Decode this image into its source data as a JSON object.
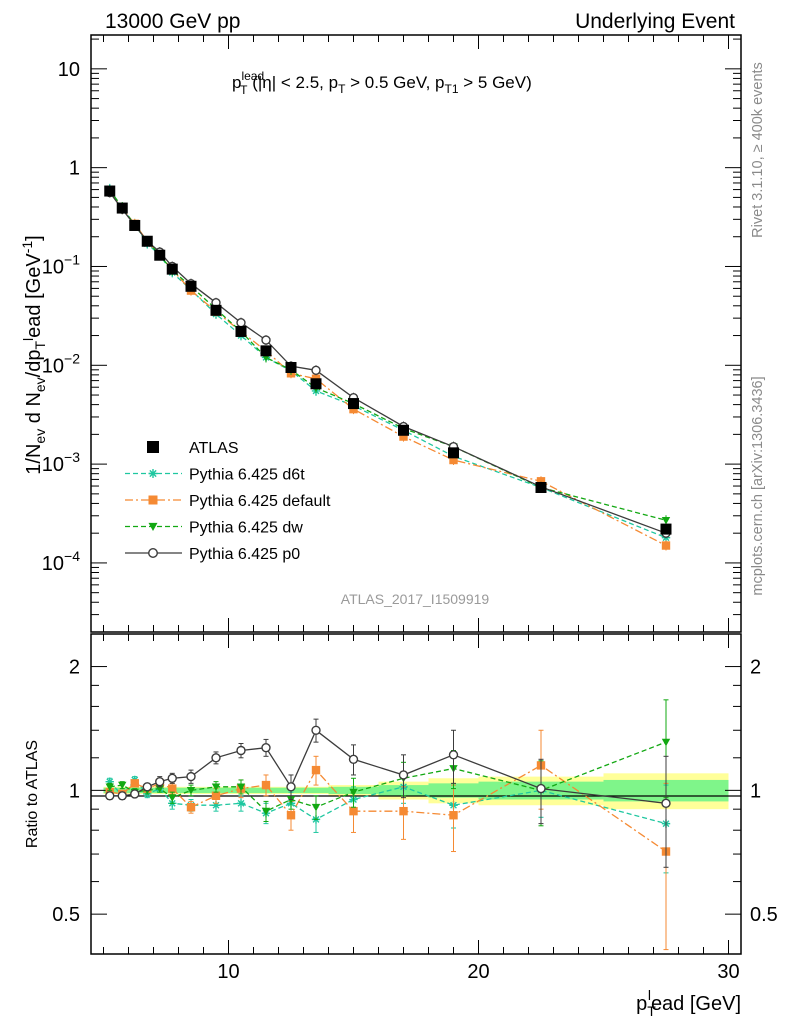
{
  "header": {
    "left": "13000 GeV pp",
    "right": "Underlying Event"
  },
  "side_labels": {
    "rivet": "Rivet 3.1.10, ≥ 400k events",
    "mcplots": "mcplots.cern.ch [arXiv:1306.3436]"
  },
  "watermark": "ATLAS_2017_I1509919",
  "colors": {
    "atlas": "#000000",
    "d6t": "#1fc7a0",
    "default": "#f58a33",
    "dw": "#12a812",
    "p0": "#3c3c3c",
    "band_inner": "#7ff58a",
    "band_outer": "#ffff99"
  },
  "chart_data": [
    {
      "type": "line",
      "panel": "main",
      "title": "p_T^lead (|η| < 2.5, p_T > 0.5 GeV, p_T1 > 5 GeV)",
      "ylabel": "1/N_ev d N_ev/dp_T^lead [GeV^-1]",
      "xlim": [
        4.5,
        30.5
      ],
      "ylim": [
        2e-05,
        22
      ],
      "yscale": "log",
      "y_tick_labels": [
        "10^-4",
        "10^-3",
        "10^-2",
        "10^-1",
        "1",
        "10"
      ],
      "legend_position": "lower-left",
      "x": [
        5.25,
        5.75,
        6.25,
        6.75,
        7.25,
        7.75,
        8.5,
        9.5,
        10.5,
        11.5,
        12.5,
        13.5,
        15.0,
        17.0,
        19.0,
        22.5,
        27.5
      ],
      "series": [
        {
          "name": "ATLAS",
          "key": "atlas",
          "marker": "square",
          "line": "none",
          "values": [
            0.58,
            0.39,
            0.26,
            0.18,
            0.13,
            0.094,
            0.063,
            0.036,
            0.022,
            0.014,
            0.0095,
            0.0065,
            0.0041,
            0.0022,
            0.0013,
            0.00058,
            0.00022
          ]
        },
        {
          "name": "Pythia 6.425 d6t",
          "key": "d6t",
          "marker": "star",
          "line": "dashed",
          "values": [
            0.61,
            0.38,
            0.27,
            0.17,
            0.13,
            0.087,
            0.058,
            0.033,
            0.02,
            0.012,
            0.0088,
            0.0055,
            0.0039,
            0.0022,
            0.0012,
            0.00058,
            0.00018
          ]
        },
        {
          "name": "Pythia 6.425 default",
          "key": "default",
          "marker": "square",
          "line": "dashdot",
          "values": [
            0.57,
            0.38,
            0.27,
            0.18,
            0.13,
            0.093,
            0.057,
            0.035,
            0.022,
            0.014,
            0.0083,
            0.0073,
            0.0036,
            0.0019,
            0.0011,
            0.00067,
            0.00015
          ]
        },
        {
          "name": "Pythia 6.425 dw",
          "key": "dw",
          "marker": "triangle-down",
          "line": "dashed",
          "values": [
            0.59,
            0.4,
            0.26,
            0.18,
            0.13,
            0.091,
            0.063,
            0.037,
            0.022,
            0.012,
            0.009,
            0.0059,
            0.0041,
            0.0023,
            0.0015,
            0.00058,
            0.00027
          ]
        },
        {
          "name": "Pythia 6.425 p0",
          "key": "p0",
          "marker": "circle-open",
          "line": "solid",
          "values": [
            0.56,
            0.38,
            0.26,
            0.18,
            0.14,
            0.1,
            0.067,
            0.043,
            0.027,
            0.018,
            0.0098,
            0.0089,
            0.0047,
            0.0024,
            0.0015,
            0.00059,
            0.0002
          ]
        }
      ]
    },
    {
      "type": "line",
      "panel": "ratio",
      "ylabel": "Ratio to ATLAS",
      "xlabel": "p_T^lead [GeV]",
      "xlim": [
        4.5,
        30.5
      ],
      "ylim": [
        0.4,
        2.4
      ],
      "yscale": "log",
      "y_ticks": [
        0.5,
        1,
        2
      ],
      "x_ticks": [
        10,
        20,
        30
      ],
      "band": {
        "x_edges": [
          5.0,
          5.5,
          6.0,
          6.5,
          7.0,
          7.5,
          8.0,
          9.0,
          10.0,
          11.0,
          12.0,
          13.0,
          14.0,
          16.0,
          18.0,
          20.0,
          25.0,
          30.0
        ],
        "inner": [
          0.015,
          0.015,
          0.015,
          0.015,
          0.015,
          0.015,
          0.015,
          0.015,
          0.015,
          0.015,
          0.015,
          0.015,
          0.02,
          0.03,
          0.04,
          0.05,
          0.06
        ],
        "outer": [
          0.02,
          0.02,
          0.02,
          0.02,
          0.02,
          0.02,
          0.02,
          0.02,
          0.02,
          0.02,
          0.02,
          0.02,
          0.03,
          0.05,
          0.07,
          0.08,
          0.1
        ]
      },
      "x": [
        5.25,
        5.75,
        6.25,
        6.75,
        7.25,
        7.75,
        8.5,
        9.5,
        10.5,
        11.5,
        12.5,
        13.5,
        15.0,
        17.0,
        19.0,
        22.5,
        27.5
      ],
      "series": [
        {
          "name": "Pythia 6.425 d6t",
          "key": "d6t",
          "values": [
            1.05,
            0.97,
            1.06,
            0.98,
            1.01,
            0.93,
            0.92,
            0.92,
            0.93,
            0.88,
            0.93,
            0.85,
            0.95,
            1.02,
            0.92,
            1.0,
            0.83
          ],
          "errors": [
            0.02,
            0.02,
            0.02,
            0.02,
            0.02,
            0.03,
            0.03,
            0.03,
            0.04,
            0.05,
            0.06,
            0.06,
            0.07,
            0.09,
            0.11,
            0.14,
            0.2
          ]
        },
        {
          "name": "Pythia 6.425 default",
          "key": "default",
          "values": [
            0.99,
            0.98,
            1.04,
            1.01,
            1.04,
            1.01,
            0.91,
            0.97,
            1.01,
            1.03,
            0.87,
            1.12,
            0.89,
            0.89,
            0.87,
            1.15,
            0.71
          ],
          "errors": [
            0.02,
            0.02,
            0.02,
            0.02,
            0.03,
            0.03,
            0.03,
            0.04,
            0.05,
            0.06,
            0.07,
            0.09,
            0.1,
            0.13,
            0.16,
            0.25,
            0.33
          ]
        },
        {
          "name": "Pythia 6.425 dw",
          "key": "dw",
          "values": [
            1.02,
            1.03,
            0.99,
            1.0,
            1.01,
            0.96,
            1.0,
            1.02,
            1.02,
            0.89,
            0.95,
            0.91,
            0.99,
            1.07,
            1.13,
            1.0,
            1.31
          ],
          "errors": [
            0.02,
            0.02,
            0.02,
            0.02,
            0.02,
            0.03,
            0.03,
            0.03,
            0.04,
            0.05,
            0.05,
            0.06,
            0.08,
            0.1,
            0.12,
            0.18,
            0.35
          ]
        },
        {
          "name": "Pythia 6.425 p0",
          "key": "p0",
          "values": [
            0.97,
            0.97,
            0.98,
            1.02,
            1.05,
            1.07,
            1.08,
            1.2,
            1.25,
            1.27,
            1.02,
            1.4,
            1.19,
            1.09,
            1.22,
            1.01,
            0.93
          ],
          "errors": [
            0.02,
            0.02,
            0.02,
            0.02,
            0.03,
            0.03,
            0.04,
            0.04,
            0.05,
            0.06,
            0.07,
            0.09,
            0.1,
            0.13,
            0.18,
            0.18,
            0.28
          ]
        }
      ]
    }
  ]
}
